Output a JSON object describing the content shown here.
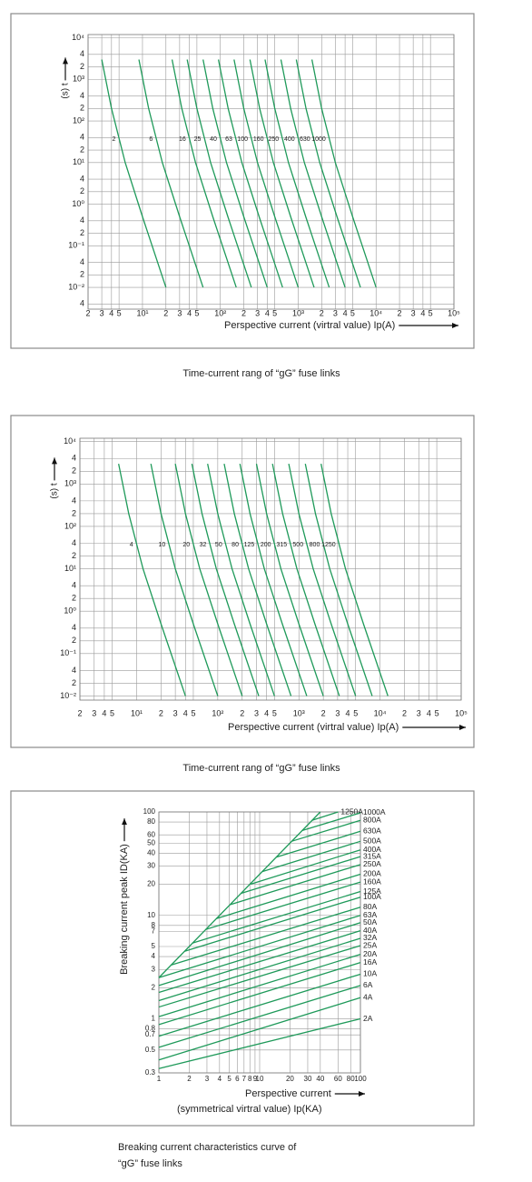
{
  "chart_data": [
    {
      "type": "line",
      "title": "Time-current rang of  “gG” fuse links",
      "x_label": "Perspective current (virtral value) Ip(A)",
      "y_label": "(s) t",
      "xscale": "log",
      "yscale": "log",
      "grid": true,
      "color": "#1f9a5a",
      "series_label": "middle",
      "xlim": [
        2,
        100000
      ],
      "ylim": [
        0.003,
        12000
      ],
      "xticks": [
        2,
        3,
        4,
        5,
        {
          "value": 10,
          "label": "10¹"
        },
        {
          "value": 20,
          "label": "2"
        },
        {
          "value": 30,
          "label": "3"
        },
        {
          "value": 40,
          "label": "4"
        },
        {
          "value": 50,
          "label": "5"
        },
        {
          "value": 100,
          "label": "10²"
        },
        {
          "value": 200,
          "label": "2"
        },
        {
          "value": 300,
          "label": "3"
        },
        {
          "value": 400,
          "label": "4"
        },
        {
          "value": 500,
          "label": "5"
        },
        {
          "value": 1000,
          "label": "10³"
        },
        {
          "value": 2000,
          "label": "2"
        },
        {
          "value": 3000,
          "label": "3"
        },
        {
          "value": 4000,
          "label": "4"
        },
        {
          "value": 5000,
          "label": "5"
        },
        {
          "value": 10000,
          "label": "10⁴"
        },
        {
          "value": 20000,
          "label": "2"
        },
        {
          "value": 30000,
          "label": "3"
        },
        {
          "value": 40000,
          "label": "4"
        },
        {
          "value": 50000,
          "label": "5"
        },
        {
          "value": 100000,
          "label": "10⁵"
        }
      ],
      "yticks": [
        {
          "value": 10000,
          "label": "10⁴"
        },
        {
          "value": 4000,
          "label": "4"
        },
        {
          "value": 2000,
          "label": "2"
        },
        {
          "value": 1000,
          "label": "10³"
        },
        {
          "value": 400,
          "label": "4"
        },
        {
          "value": 200,
          "label": "2"
        },
        {
          "value": 100,
          "label": "10²"
        },
        {
          "value": 40,
          "label": "4"
        },
        {
          "value": 20,
          "label": "2"
        },
        {
          "value": 10,
          "label": "10¹"
        },
        4,
        2,
        {
          "value": 1,
          "label": "10⁰"
        },
        {
          "value": 0.4,
          "label": "4"
        },
        {
          "value": 0.2,
          "label": "2"
        },
        {
          "value": 0.1,
          "label": "10⁻¹"
        },
        {
          "value": 0.04,
          "label": "4"
        },
        {
          "value": 0.02,
          "label": "2"
        },
        {
          "value": 0.01,
          "label": "10⁻²"
        },
        {
          "value": 0.004,
          "label": "4"
        }
      ],
      "series": [
        {
          "name": "2",
          "x": [
            3,
            4,
            6,
            10,
            20
          ],
          "values": [
            3000,
            200,
            10,
            0.5,
            0.01
          ]
        },
        {
          "name": "6",
          "x": [
            9,
            12,
            18,
            30,
            60
          ],
          "values": [
            3000,
            200,
            10,
            0.5,
            0.01
          ]
        },
        {
          "name": "16",
          "x": [
            24,
            32,
            48,
            80,
            160
          ],
          "values": [
            3000,
            200,
            10,
            0.5,
            0.01
          ]
        },
        {
          "name": "25",
          "x": [
            37.5,
            50,
            75,
            125,
            250
          ],
          "values": [
            3000,
            200,
            10,
            0.5,
            0.01
          ]
        },
        {
          "name": "40",
          "x": [
            60,
            80,
            120,
            200,
            400
          ],
          "values": [
            3000,
            200,
            10,
            0.5,
            0.01
          ]
        },
        {
          "name": "63",
          "x": [
            94.5,
            126,
            189,
            315,
            630
          ],
          "values": [
            3000,
            200,
            10,
            0.5,
            0.01
          ]
        },
        {
          "name": "100",
          "x": [
            150,
            200,
            300,
            500,
            1000
          ],
          "values": [
            3000,
            200,
            10,
            0.5,
            0.01
          ]
        },
        {
          "name": "160",
          "x": [
            240,
            320,
            480,
            800,
            1600
          ],
          "values": [
            3000,
            200,
            10,
            0.5,
            0.01
          ]
        },
        {
          "name": "250",
          "x": [
            375,
            500,
            750,
            1250,
            2500
          ],
          "values": [
            3000,
            200,
            10,
            0.5,
            0.01
          ]
        },
        {
          "name": "400",
          "x": [
            600,
            800,
            1200,
            2000,
            4000
          ],
          "values": [
            3000,
            200,
            10,
            0.5,
            0.01
          ]
        },
        {
          "name": "630",
          "x": [
            945,
            1260,
            1890,
            3150,
            6300
          ],
          "values": [
            3000,
            200,
            10,
            0.5,
            0.01
          ]
        },
        {
          "name": "1000",
          "x": [
            1500,
            2000,
            3000,
            5000,
            10000
          ],
          "values": [
            3000,
            200,
            10,
            0.5,
            0.01
          ]
        }
      ]
    },
    {
      "type": "line",
      "title": "Time-current rang of  “gG” fuse links",
      "x_label": "Perspective current (virtral value) Ip(A)",
      "y_label": "(s) t",
      "xscale": "log",
      "yscale": "log",
      "grid": true,
      "color": "#1f9a5a",
      "series_label": "middle",
      "xlim": [
        2,
        100000
      ],
      "ylim": [
        0.008,
        12000
      ],
      "xticks": [
        2,
        3,
        4,
        5,
        {
          "value": 10,
          "label": "10¹"
        },
        {
          "value": 20,
          "label": "2"
        },
        {
          "value": 30,
          "label": "3"
        },
        {
          "value": 40,
          "label": "4"
        },
        {
          "value": 50,
          "label": "5"
        },
        {
          "value": 100,
          "label": "10²"
        },
        {
          "value": 200,
          "label": "2"
        },
        {
          "value": 300,
          "label": "3"
        },
        {
          "value": 400,
          "label": "4"
        },
        {
          "value": 500,
          "label": "5"
        },
        {
          "value": 1000,
          "label": "10³"
        },
        {
          "value": 2000,
          "label": "2"
        },
        {
          "value": 3000,
          "label": "3"
        },
        {
          "value": 4000,
          "label": "4"
        },
        {
          "value": 5000,
          "label": "5"
        },
        {
          "value": 10000,
          "label": "10⁴"
        },
        {
          "value": 20000,
          "label": "2"
        },
        {
          "value": 30000,
          "label": "3"
        },
        {
          "value": 40000,
          "label": "4"
        },
        {
          "value": 50000,
          "label": "5"
        },
        {
          "value": 100000,
          "label": "10⁵"
        }
      ],
      "yticks": [
        {
          "value": 10000,
          "label": "10⁴"
        },
        {
          "value": 4000,
          "label": "4"
        },
        {
          "value": 2000,
          "label": "2"
        },
        {
          "value": 1000,
          "label": "10³"
        },
        {
          "value": 400,
          "label": "4"
        },
        {
          "value": 200,
          "label": "2"
        },
        {
          "value": 100,
          "label": "10²"
        },
        {
          "value": 40,
          "label": "4"
        },
        {
          "value": 20,
          "label": "2"
        },
        {
          "value": 10,
          "label": "10¹"
        },
        4,
        2,
        {
          "value": 1,
          "label": "10⁰"
        },
        {
          "value": 0.4,
          "label": "4"
        },
        {
          "value": 0.2,
          "label": "2"
        },
        {
          "value": 0.1,
          "label": "10⁻¹"
        },
        {
          "value": 0.04,
          "label": "4"
        },
        {
          "value": 0.02,
          "label": "2"
        },
        {
          "value": 0.01,
          "label": "10⁻²"
        }
      ],
      "series": [
        {
          "name": "4",
          "x": [
            6,
            8,
            12,
            20,
            40
          ],
          "values": [
            3000,
            200,
            10,
            0.5,
            0.01
          ]
        },
        {
          "name": "10",
          "x": [
            15,
            20,
            30,
            50,
            100
          ],
          "values": [
            3000,
            200,
            10,
            0.5,
            0.01
          ]
        },
        {
          "name": "20",
          "x": [
            30,
            40,
            60,
            100,
            200
          ],
          "values": [
            3000,
            200,
            10,
            0.5,
            0.01
          ]
        },
        {
          "name": "32",
          "x": [
            48,
            64,
            96,
            160,
            320
          ],
          "values": [
            3000,
            200,
            10,
            0.5,
            0.01
          ]
        },
        {
          "name": "50",
          "x": [
            75,
            100,
            150,
            250,
            500
          ],
          "values": [
            3000,
            200,
            10,
            0.5,
            0.01
          ]
        },
        {
          "name": "80",
          "x": [
            120,
            160,
            240,
            400,
            800
          ],
          "values": [
            3000,
            200,
            10,
            0.5,
            0.01
          ]
        },
        {
          "name": "125",
          "x": [
            187.5,
            250,
            375,
            625,
            1250
          ],
          "values": [
            3000,
            200,
            10,
            0.5,
            0.01
          ]
        },
        {
          "name": "200",
          "x": [
            300,
            400,
            600,
            1000,
            2000
          ],
          "values": [
            3000,
            200,
            10,
            0.5,
            0.01
          ]
        },
        {
          "name": "315",
          "x": [
            472.5,
            630,
            945,
            1575,
            3150
          ],
          "values": [
            3000,
            200,
            10,
            0.5,
            0.01
          ]
        },
        {
          "name": "500",
          "x": [
            750,
            1000,
            1500,
            2500,
            5000
          ],
          "values": [
            3000,
            200,
            10,
            0.5,
            0.01
          ]
        },
        {
          "name": "800",
          "x": [
            1200,
            1600,
            2400,
            4000,
            8000
          ],
          "values": [
            3000,
            200,
            10,
            0.5,
            0.01
          ]
        },
        {
          "name": "1250",
          "x": [
            1875,
            2500,
            3750,
            6250,
            12500
          ],
          "values": [
            3000,
            200,
            10,
            0.5,
            0.01
          ]
        }
      ]
    },
    {
      "type": "line",
      "title": [
        "Breaking current characteristics curve of",
        "“gG” fuse links"
      ],
      "x_label": [
        "Perspective current",
        "(symmetrical virtral value) Ip(KA)"
      ],
      "y_label": "Breaking current peak ID(KA)",
      "xscale": "log",
      "yscale": "log",
      "grid": true,
      "color": "#1f9a5a",
      "series_label": "end",
      "xlim": [
        1,
        100
      ],
      "ylim": [
        0.3,
        100
      ],
      "xticks": [
        1,
        2,
        3,
        4,
        5,
        6,
        7,
        8,
        9,
        10,
        20,
        30,
        40,
        60,
        80,
        100
      ],
      "yticks": [
        0.3,
        0.5,
        0.7,
        0.8,
        1,
        2,
        3,
        4,
        5,
        7,
        8,
        10,
        20,
        30,
        40,
        50,
        60,
        80,
        100
      ],
      "series": [
        {
          "x": [
            1,
            40
          ],
          "values": [
            2.5,
            100
          ]
        },
        {
          "name": "1250A",
          "x": [
            33,
            60
          ],
          "values": [
            83,
            100
          ]
        },
        {
          "name": "1000A",
          "x": [
            26.3,
            100
          ],
          "values": [
            66,
            98
          ]
        },
        {
          "name": "800A",
          "x": [
            20.7,
            100
          ],
          "values": [
            52,
            83
          ]
        },
        {
          "name": "630A",
          "x": [
            14.6,
            100
          ],
          "values": [
            36.5,
            65
          ]
        },
        {
          "name": "500A",
          "x": [
            10.6,
            100
          ],
          "values": [
            26.5,
            52
          ]
        },
        {
          "name": "400A",
          "x": [
            8.1,
            100
          ],
          "values": [
            20,
            43
          ]
        },
        {
          "name": "315A",
          "x": [
            6.5,
            100
          ],
          "values": [
            16.3,
            37
          ]
        },
        {
          "name": "250A",
          "x": [
            5.1,
            100
          ],
          "values": [
            12.7,
            31
          ]
        },
        {
          "name": "200A",
          "x": [
            3.7,
            100
          ],
          "values": [
            9.3,
            25
          ]
        },
        {
          "name": "160A",
          "x": [
            2.9,
            100
          ],
          "values": [
            7.3,
            21
          ]
        },
        {
          "name": "125A",
          "x": [
            2.15,
            100
          ],
          "values": [
            5.4,
            17
          ]
        },
        {
          "name": "100A",
          "x": [
            1.8,
            100
          ],
          "values": [
            4.5,
            15
          ]
        },
        {
          "name": "80A",
          "x": [
            1.31,
            100
          ],
          "values": [
            3.3,
            12
          ]
        },
        {
          "name": "63A",
          "x": [
            1,
            100
          ],
          "values": [
            2.5,
            10
          ]
        },
        {
          "name": "50A",
          "x": [
            1,
            100
          ],
          "values": [
            2.1,
            8.5
          ]
        },
        {
          "name": "40A",
          "x": [
            1,
            100
          ],
          "values": [
            1.8,
            7.1
          ]
        },
        {
          "name": "32A",
          "x": [
            1,
            100
          ],
          "values": [
            1.5,
            6
          ]
        },
        {
          "name": "25A",
          "x": [
            1,
            100
          ],
          "values": [
            1.3,
            5.1
          ]
        },
        {
          "name": "20A",
          "x": [
            1,
            100
          ],
          "values": [
            1.05,
            4.2
          ]
        },
        {
          "name": "16A",
          "x": [
            1,
            100
          ],
          "values": [
            0.88,
            3.5
          ]
        },
        {
          "name": "10A",
          "x": [
            1,
            100
          ],
          "values": [
            0.68,
            2.7
          ]
        },
        {
          "name": "6A",
          "x": [
            1,
            100
          ],
          "values": [
            0.53,
            2.1
          ]
        },
        {
          "name": "4A",
          "x": [
            1,
            100
          ],
          "values": [
            0.4,
            1.6
          ]
        },
        {
          "name": "2A",
          "x": [
            1,
            100
          ],
          "values": [
            0.33,
            1
          ]
        }
      ]
    }
  ]
}
